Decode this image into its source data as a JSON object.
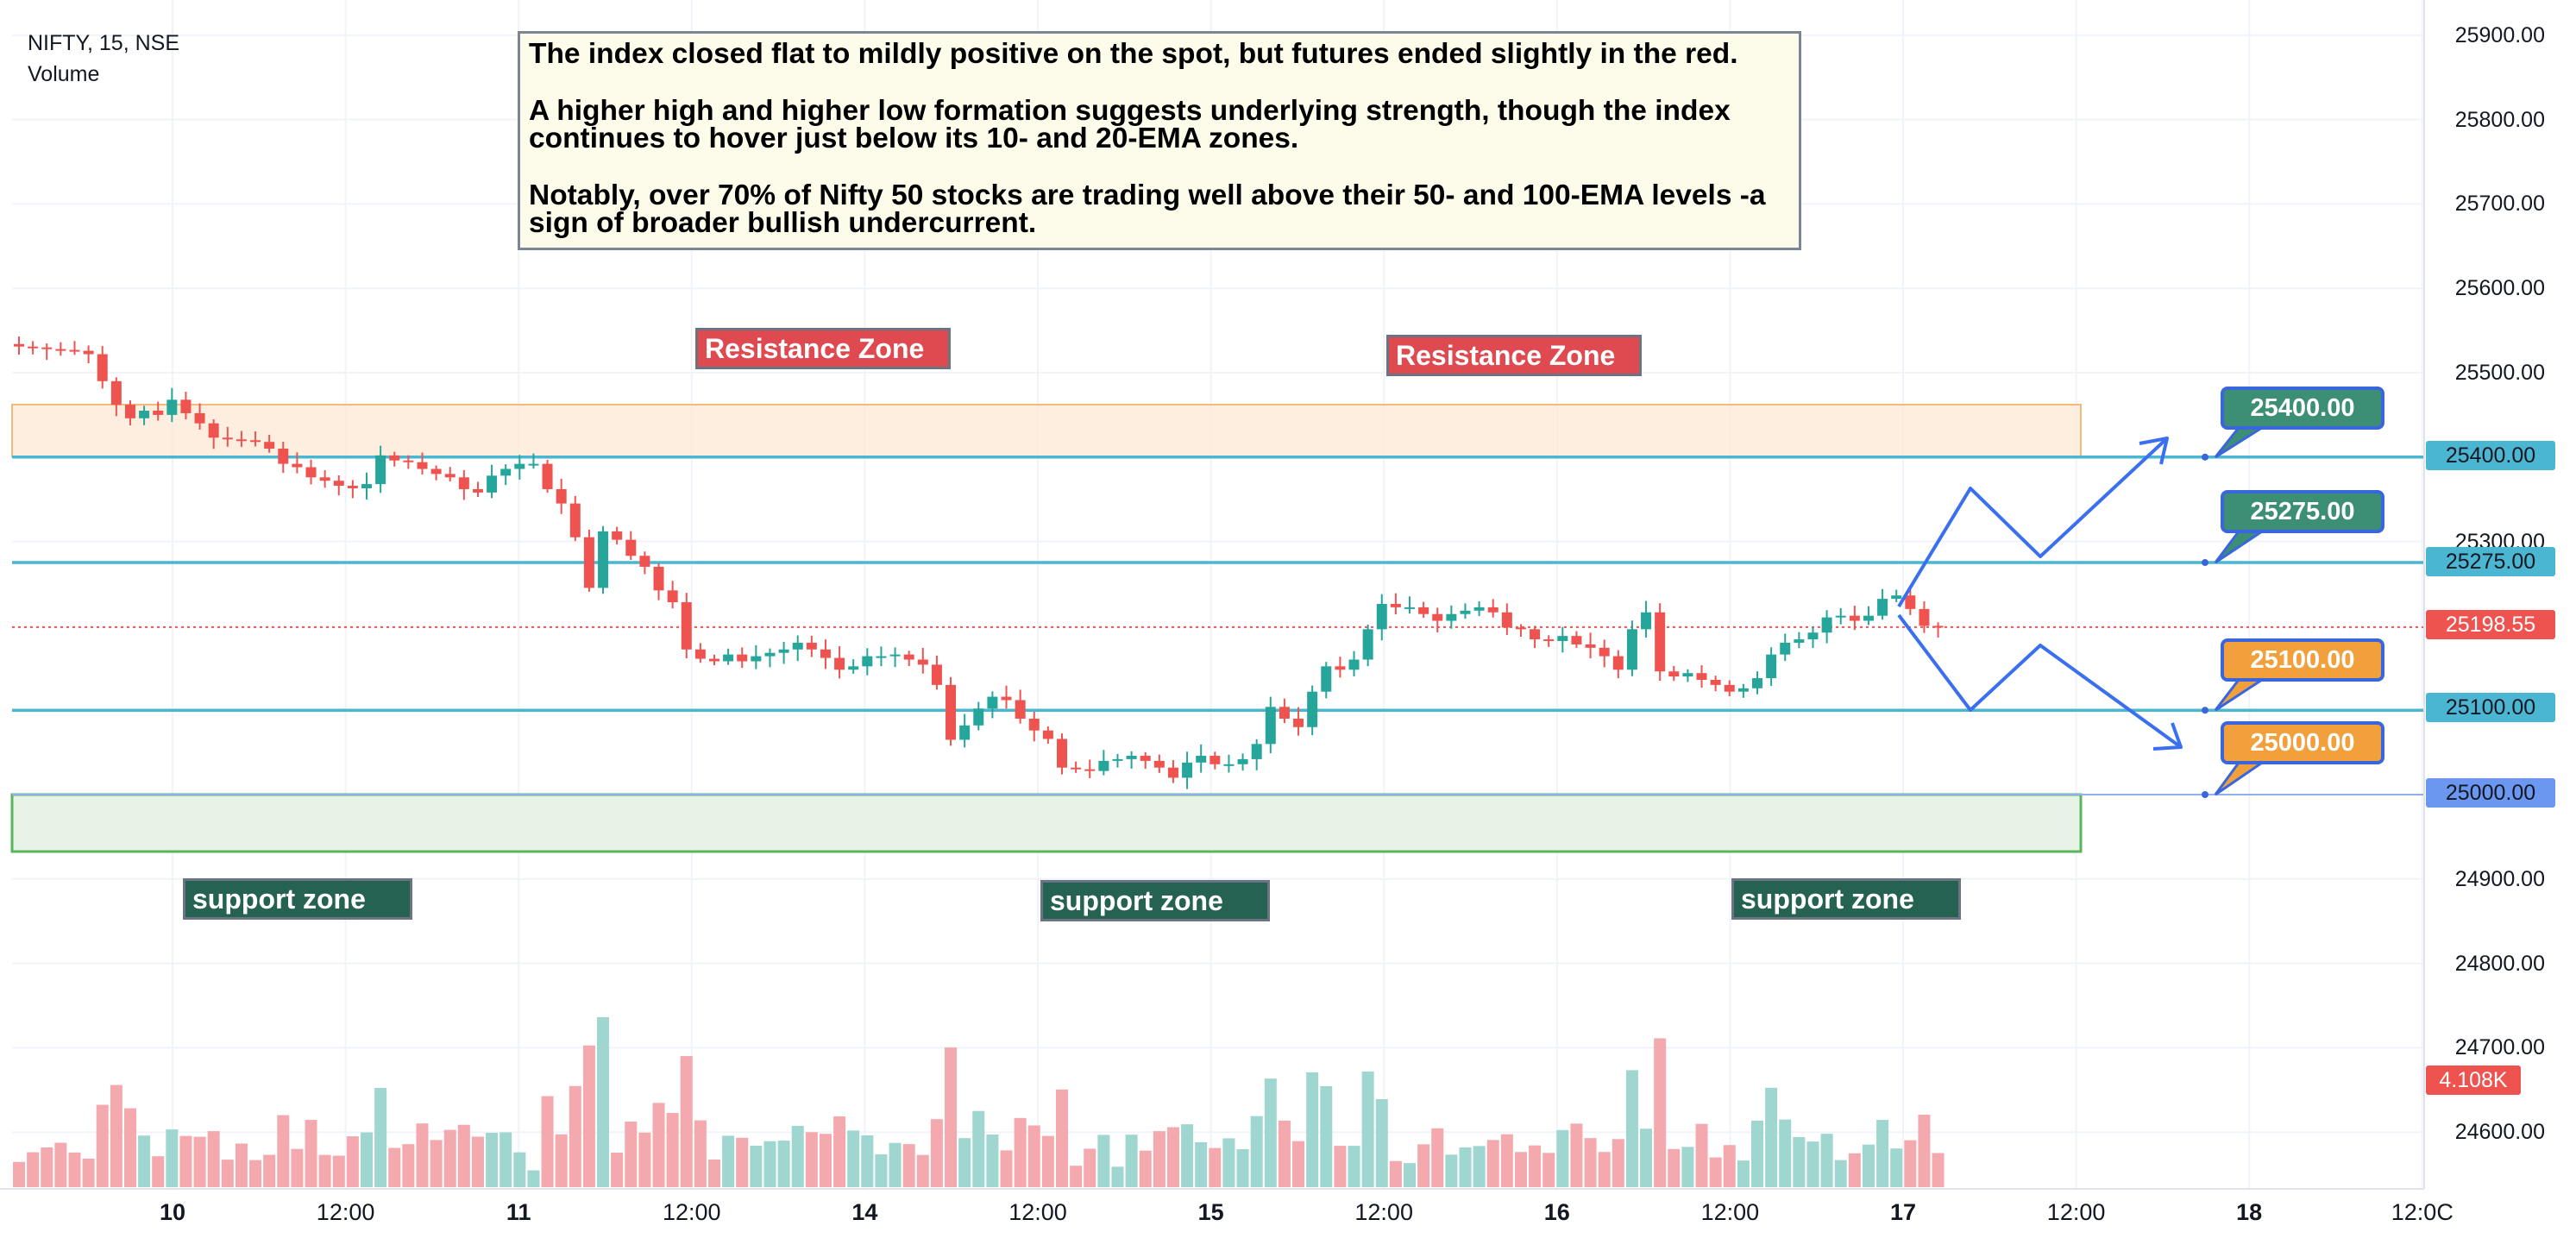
{
  "header": {
    "symbol_line": "NIFTY, 15, NSE",
    "volume_label": "Volume"
  },
  "annotation": {
    "paragraphs": [
      "The index closed flat to mildly positive on the spot, but futures ended slightly in the red.",
      "A higher high and higher low formation suggests underlying strength, though the index continues to hover just below its 10- and 20-EMA zones.",
      "Notably, over 70% of Nifty 50 stocks are trading well above their 50- and 100-EMA levels -a sign of broader bullish undercurrent."
    ]
  },
  "zones": {
    "resistance_label": "Resistance Zone",
    "support_label": "support zone",
    "resistance_color": "#de4a4f",
    "support_color": "#266252"
  },
  "levels": {
    "l25400": "25400.00",
    "l25275": "25275.00",
    "l25100": "25100.00",
    "l25000": "25000.00",
    "last_price": "25198.55",
    "last_volume": "4.108K"
  },
  "colors": {
    "up": "#26a69a",
    "down": "#ef5350",
    "level_line": "#4bb6d2",
    "projection": "#3a6ff0",
    "callout_green": "#3c8f74",
    "callout_orange": "#f2a03c"
  },
  "chart_data": {
    "type": "candlestick",
    "symbol": "NIFTY",
    "interval": "15",
    "exchange": "NSE",
    "price_axis": {
      "ticks": [
        "25900.00",
        "25800.00",
        "25700.00",
        "25600.00",
        "25500.00",
        "25300.00",
        "24900.00",
        "24800.00",
        "24700.00",
        "24600.00"
      ],
      "range": [
        24560,
        25930
      ]
    },
    "x_axis": {
      "ticks": [
        {
          "label": "10",
          "day": true
        },
        {
          "label": "12:00",
          "day": false
        },
        {
          "label": "11",
          "day": true
        },
        {
          "label": "12:00",
          "day": false
        },
        {
          "label": "14",
          "day": true
        },
        {
          "label": "12:00",
          "day": false
        },
        {
          "label": "15",
          "day": true
        },
        {
          "label": "12:00",
          "day": false
        },
        {
          "label": "16",
          "day": true
        },
        {
          "label": "12:00",
          "day": false
        },
        {
          "label": "17",
          "day": true
        },
        {
          "label": "12:00",
          "day": false
        },
        {
          "label": "18",
          "day": true
        },
        {
          "label": "12:0C",
          "day": false
        }
      ]
    },
    "horizontal_levels": [
      25400,
      25275,
      25100,
      25000
    ],
    "resistance_zone": [
      25400,
      25463
    ],
    "support_zone": [
      24930,
      25000
    ],
    "last_price": 25198.55,
    "closes": [
      25531,
      25530,
      25528,
      25527,
      25526,
      25522,
      25490,
      25462,
      25446,
      25455,
      25450,
      25468,
      25452,
      25440,
      25423,
      25421,
      25420,
      25418,
      25410,
      25392,
      25388,
      25376,
      25372,
      25366,
      25363,
      25368,
      25402,
      25396,
      25394,
      25386,
      25380,
      25376,
      25362,
      25358,
      25378,
      25386,
      25392,
      25392,
      25362,
      25345,
      25305,
      25245,
      25312,
      25302,
      25283,
      25270,
      25242,
      25228,
      25172,
      25161,
      25158,
      25166,
      25158,
      25164,
      25168,
      25172,
      25180,
      25172,
      25162,
      25148,
      25152,
      25164,
      25164,
      25166,
      25160,
      25154,
      25130,
      25065,
      25082,
      25102,
      25116,
      25112,
      25090,
      25076,
      25066,
      25032,
      25030,
      25028,
      25040,
      25042,
      25046,
      25040,
      25032,
      25020,
      25038,
      25046,
      25036,
      25036,
      25042,
      25060,
      25104,
      25090,
      25080,
      25122,
      25152,
      25148,
      25160,
      25196,
      25226,
      25222,
      25222,
      25214,
      25206,
      25214,
      25218,
      25222,
      25216,
      25198,
      25196,
      25184,
      25182,
      25188,
      25178,
      25174,
      25164,
      25148,
      25196,
      25216,
      25146,
      25140,
      25144,
      25136,
      25130,
      25122,
      25126,
      25138,
      25166,
      25180,
      25184,
      25192,
      25210,
      25212,
      25206,
      25212,
      25232,
      25236,
      25220,
      25200,
      25198
    ]
  }
}
